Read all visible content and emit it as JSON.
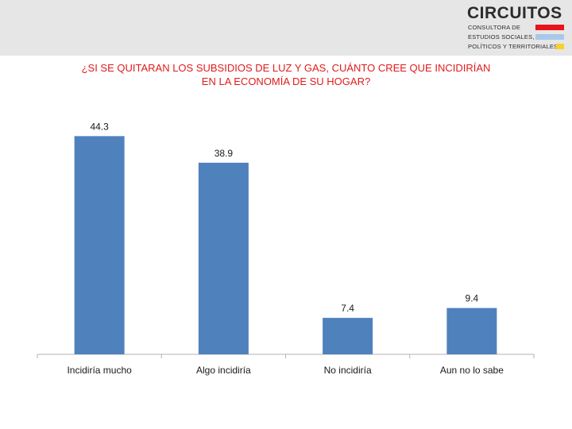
{
  "header": {
    "logo": {
      "name": "CIRCUITOS",
      "line1": "CONSULTORA DE",
      "line2": "ESTUDIOS SOCIALES,",
      "line3": "POLÍTICOS Y TERRITORIALES"
    },
    "title_line1": "¿SI SE QUITARAN LOS SUBSIDIOS DE LUZ Y GAS, CUÁNTO CREE QUE INCIDIRÍAN",
    "title_line2": "EN LA ECONOMÍA DE SU HOGAR?"
  },
  "colors": {
    "bar": "#4f81bd",
    "title": "#e01b1b",
    "header_band": "#e6e6e6",
    "stripe_red": "#e8141c",
    "stripe_blue": "#a7c8ea",
    "stripe_yellow": "#f5d22a"
  },
  "chart_data": {
    "type": "bar",
    "title": "¿SI SE QUITARAN LOS SUBSIDIOS DE LUZ Y GAS, CUÁNTO CREE QUE INCIDIRÍAN EN LA ECONOMÍA DE SU HOGAR?",
    "categories": [
      "Incidiría mucho",
      "Algo incidiría",
      "No incidiría",
      "Aun no lo sabe"
    ],
    "values": [
      44.3,
      38.9,
      7.4,
      9.4
    ],
    "data_labels": [
      "44.3",
      "38.9",
      "7.4",
      "9.4"
    ],
    "xlabel": "",
    "ylabel": "",
    "ylim": [
      0,
      50
    ],
    "grid": false,
    "legend": "none"
  }
}
